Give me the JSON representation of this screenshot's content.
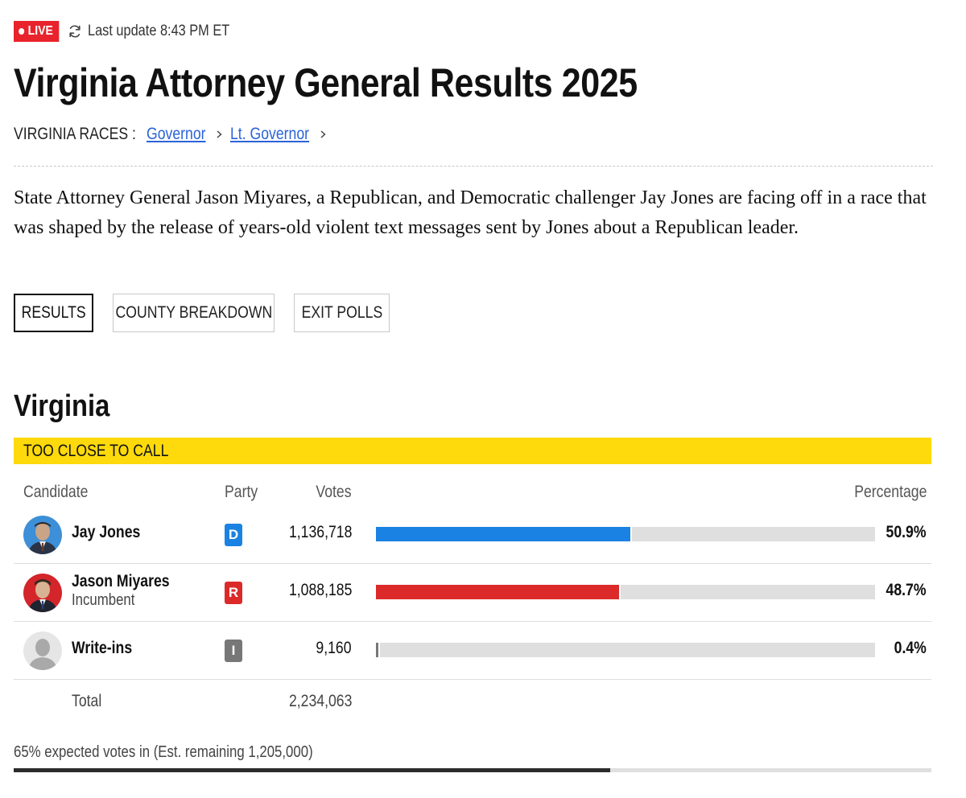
{
  "header": {
    "live_label": "LIVE",
    "last_update": "Last update 8:43 PM ET",
    "title": "Virginia Attorney General Results 2025"
  },
  "races_nav": {
    "label": "VIRGINIA RACES :",
    "links": [
      {
        "label": "Governor"
      },
      {
        "label": "Lt. Governor"
      }
    ]
  },
  "description": "State Attorney General Jason Miyares, a Republican, and Democratic challenger Jay Jones are facing off in a race that was shaped by the release of years-old violent text messages sent by Jones about a Republican leader.",
  "tabs": [
    {
      "label": "RESULTS",
      "active": true
    },
    {
      "label": "COUNTY BREAKDOWN",
      "active": false
    },
    {
      "label": "EXIT POLLS",
      "active": false
    }
  ],
  "state": {
    "name": "Virginia",
    "call_status": "TOO CLOSE TO CALL",
    "call_color": "#fed90b"
  },
  "table": {
    "headers": {
      "candidate": "Candidate",
      "party": "Party",
      "votes": "Votes",
      "percentage": "Percentage"
    },
    "candidates": [
      {
        "name": "Jay Jones",
        "subtitle": "",
        "party": "D",
        "party_color": "#1a82e2",
        "votes": "1,136,718",
        "percentage": "50.9%",
        "share": 0.509
      },
      {
        "name": "Jason Miyares",
        "subtitle": "Incumbent",
        "party": "R",
        "party_color": "#dc2a2a",
        "votes": "1,088,185",
        "percentage": "48.7%",
        "share": 0.487
      },
      {
        "name": "Write-ins",
        "subtitle": "",
        "party": "I",
        "party_color": "#777777",
        "votes": "9,160",
        "percentage": "0.4%",
        "share": 0.004
      }
    ],
    "total_label": "Total",
    "total_votes": "2,234,063"
  },
  "expected": {
    "text": "65% expected votes in (Est. remaining 1,205,000)",
    "fraction": 0.65
  },
  "colors": {
    "live": "#e8232b",
    "link": "#2b63d9"
  }
}
